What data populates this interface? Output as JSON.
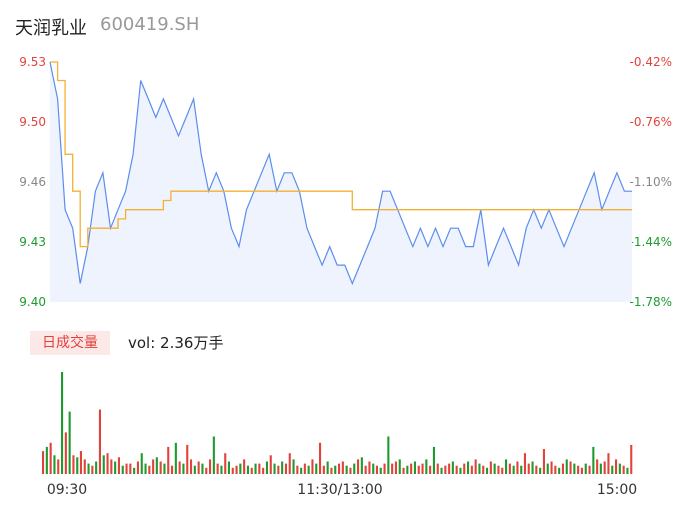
{
  "header": {
    "name": "天润乳业",
    "code": "600419.SH"
  },
  "volume_panel": {
    "badge": "日成交量",
    "label": "vol: 2.36万手"
  },
  "colors": {
    "price": "#5b8def",
    "avg": "#f2b134",
    "up": "#e2423c",
    "down": "#1d9b2f",
    "neutral": "#888888",
    "fill": "#eef3fd"
  },
  "chart_data": {
    "type": "line",
    "x_ticks": [
      "09:30",
      "11:30/13:00",
      "15:00"
    ],
    "y_ticks": [
      "9.53",
      "9.50",
      "9.46",
      "9.43",
      "9.40"
    ],
    "pct_ticks": [
      "-0.42%",
      "-0.76%",
      "-1.10%",
      "-1.44%",
      "-1.78%"
    ],
    "ylim": [
      9.4,
      9.53
    ],
    "series": [
      {
        "values": [
          9.53,
          9.51,
          9.45,
          9.44,
          9.41,
          9.43,
          9.46,
          9.47,
          9.44,
          9.45,
          9.46,
          9.48,
          9.52,
          9.51,
          9.5,
          9.51,
          9.5,
          9.49,
          9.5,
          9.51,
          9.48,
          9.46,
          9.47,
          9.46,
          9.44,
          9.43,
          9.45,
          9.46,
          9.47,
          9.48,
          9.46,
          9.47,
          9.47,
          9.46,
          9.44,
          9.43,
          9.42,
          9.43,
          9.42,
          9.42,
          9.41,
          9.42,
          9.43,
          9.44,
          9.46,
          9.46,
          9.45,
          9.44,
          9.43,
          9.44,
          9.43,
          9.44,
          9.43,
          9.44,
          9.44,
          9.43,
          9.43,
          9.45,
          9.42,
          9.43,
          9.44,
          9.43,
          9.42,
          9.44,
          9.45,
          9.44,
          9.45,
          9.44,
          9.43,
          9.44,
          9.45,
          9.46,
          9.47,
          9.45,
          9.46,
          9.47,
          9.46,
          9.46
        ]
      },
      {
        "values": [
          9.53,
          9.52,
          9.48,
          9.46,
          9.43,
          9.44,
          9.44,
          9.44,
          9.44,
          9.445,
          9.45,
          9.45,
          9.45,
          9.45,
          9.45,
          9.455,
          9.46,
          9.46,
          9.46,
          9.46,
          9.46,
          9.46,
          9.46,
          9.46,
          9.46,
          9.46,
          9.46,
          9.46,
          9.46,
          9.46,
          9.46,
          9.46,
          9.46,
          9.46,
          9.46,
          9.46,
          9.46,
          9.46,
          9.46,
          9.46,
          9.45,
          9.45,
          9.45,
          9.45,
          9.45,
          9.45,
          9.45,
          9.45,
          9.45,
          9.45,
          9.45,
          9.45,
          9.45,
          9.45,
          9.45,
          9.45,
          9.45,
          9.45,
          9.45,
          9.45,
          9.45,
          9.45,
          9.45,
          9.45,
          9.45,
          9.45,
          9.45,
          9.45,
          9.45,
          9.45,
          9.45,
          9.45,
          9.45,
          9.45,
          9.45,
          9.45,
          9.45,
          9.45
        ]
      }
    ],
    "volume": {
      "values": [
        22,
        26,
        30,
        18,
        14,
        98,
        40,
        60,
        18,
        16,
        22,
        14,
        10,
        8,
        12,
        62,
        18,
        20,
        14,
        12,
        16,
        8,
        10,
        10,
        6,
        12,
        20,
        10,
        8,
        14,
        16,
        12,
        10,
        26,
        8,
        30,
        12,
        10,
        28,
        14,
        8,
        12,
        10,
        6,
        14,
        36,
        10,
        8,
        20,
        12,
        6,
        8,
        10,
        14,
        8,
        6,
        10,
        10,
        6,
        12,
        18,
        10,
        8,
        12,
        10,
        20,
        14,
        8,
        6,
        10,
        8,
        14,
        10,
        30,
        8,
        12,
        6,
        8,
        10,
        12,
        8,
        6,
        10,
        14,
        16,
        8,
        12,
        10,
        8,
        6,
        10,
        36,
        10,
        12,
        14,
        6,
        8,
        10,
        12,
        8,
        10,
        14,
        8,
        26,
        10,
        6,
        8,
        10,
        12,
        8,
        6,
        10,
        12,
        8,
        14,
        10,
        8,
        6,
        12,
        10,
        8,
        6,
        14,
        10,
        8,
        12,
        8,
        20,
        10,
        12,
        8,
        6,
        24,
        10,
        12,
        8,
        6,
        10,
        14,
        12,
        10,
        8,
        6,
        10,
        8,
        26,
        14,
        10,
        12,
        20,
        8,
        14,
        10,
        8,
        6,
        28
      ],
      "colors": [
        "up",
        "down",
        "up",
        "down",
        "up",
        "down",
        "up",
        "down",
        "up",
        "down",
        "up",
        "up",
        "down",
        "up",
        "down",
        "up",
        "down",
        "up",
        "up",
        "down",
        "up",
        "down",
        "up",
        "up",
        "down",
        "up",
        "down",
        "down",
        "up",
        "up",
        "down",
        "up",
        "down",
        "up",
        "up",
        "down",
        "up",
        "down",
        "up",
        "up",
        "down",
        "up",
        "down",
        "up",
        "up",
        "down",
        "up",
        "down",
        "up",
        "down",
        "up",
        "up",
        "down",
        "up",
        "down",
        "up",
        "down",
        "up",
        "up",
        "down",
        "up",
        "down",
        "up",
        "down",
        "up",
        "up",
        "down",
        "up",
        "down",
        "up",
        "down",
        "up",
        "down",
        "up",
        "up",
        "down",
        "up",
        "down",
        "up",
        "up",
        "down",
        "up",
        "down",
        "up",
        "down",
        "up",
        "up",
        "down",
        "up",
        "down",
        "up",
        "down",
        "up",
        "up",
        "down",
        "up",
        "down",
        "up",
        "down",
        "up",
        "up",
        "down",
        "up",
        "down",
        "up",
        "down",
        "up",
        "up",
        "down",
        "up",
        "down",
        "up",
        "down",
        "up",
        "up",
        "down",
        "up",
        "down",
        "up",
        "down",
        "up",
        "up",
        "down",
        "up",
        "down",
        "up",
        "down",
        "up",
        "up",
        "down",
        "up",
        "down",
        "up",
        "down",
        "up",
        "up",
        "down",
        "up",
        "down",
        "up",
        "down",
        "up",
        "up",
        "down",
        "up",
        "down",
        "up",
        "down",
        "up",
        "up",
        "down",
        "up",
        "down",
        "up",
        "down",
        "up"
      ]
    }
  }
}
